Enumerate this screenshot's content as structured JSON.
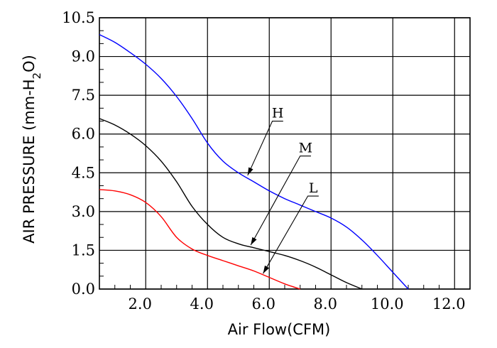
{
  "chart_data": {
    "type": "line",
    "xlabel": "Air Flow(CFM)",
    "ylabel": "AIR PRESSURE (mm-H2O)",
    "ylabel_parts": {
      "main": "AIR PRESSURE (mm-H",
      "sub": "2",
      "end": "O)"
    },
    "xlim": [
      0.5,
      12.5
    ],
    "ylim": [
      0,
      10.5
    ],
    "x_ticks": [
      2.0,
      4.0,
      6.0,
      8.0,
      10.0,
      12.0
    ],
    "x_tick_labels": [
      "2.0",
      "4.0",
      "6.0",
      "8.0",
      "10.0",
      "12.0"
    ],
    "y_ticks": [
      0,
      1.5,
      3.0,
      4.5,
      6.0,
      7.5,
      9.0,
      10.5
    ],
    "y_tick_labels": [
      "0.0",
      "1.5",
      "3.0",
      "4.5",
      "6.0",
      "7.5",
      "9.0",
      "10.5"
    ],
    "grid": true,
    "series": [
      {
        "name": "H",
        "color": "#0000ff",
        "x": [
          0.5,
          1.0,
          1.5,
          2.0,
          2.5,
          3.0,
          3.5,
          4.0,
          4.5,
          5.0,
          5.5,
          6.0,
          6.5,
          7.0,
          7.5,
          8.0,
          8.5,
          9.0,
          9.5,
          10.0,
          10.5
        ],
        "y": [
          9.85,
          9.55,
          9.15,
          8.7,
          8.15,
          7.45,
          6.6,
          5.65,
          4.95,
          4.5,
          4.15,
          3.8,
          3.5,
          3.25,
          3.0,
          2.75,
          2.4,
          1.9,
          1.3,
          0.65,
          0.0
        ]
      },
      {
        "name": "M",
        "color": "#000000",
        "x": [
          0.5,
          1.0,
          1.5,
          2.0,
          2.5,
          3.0,
          3.5,
          4.0,
          4.5,
          5.0,
          5.5,
          6.0,
          6.5,
          7.0,
          7.5,
          8.0,
          8.5,
          9.0
        ],
        "y": [
          6.6,
          6.35,
          6.0,
          5.55,
          4.95,
          4.15,
          3.2,
          2.5,
          2.0,
          1.75,
          1.6,
          1.45,
          1.3,
          1.1,
          0.85,
          0.55,
          0.25,
          0.0
        ]
      },
      {
        "name": "L",
        "color": "#ff0000",
        "x": [
          0.5,
          1.0,
          1.5,
          2.0,
          2.5,
          3.0,
          3.5,
          4.0,
          4.5,
          5.0,
          5.5,
          6.0,
          6.5,
          7.0
        ],
        "y": [
          3.85,
          3.8,
          3.65,
          3.35,
          2.8,
          2.0,
          1.55,
          1.3,
          1.1,
          0.9,
          0.7,
          0.45,
          0.2,
          0.0
        ]
      }
    ],
    "annotations": [
      {
        "text": "H",
        "target": [
          5.3,
          4.4
        ],
        "elbow": [
          6.1,
          6.5
        ],
        "label_end": [
          6.45,
          6.5
        ]
      },
      {
        "text": "M",
        "target": [
          5.4,
          1.7
        ],
        "elbow": [
          7.0,
          5.15
        ],
        "label_end": [
          7.35,
          5.15
        ]
      },
      {
        "text": "L",
        "target": [
          5.8,
          0.6
        ],
        "elbow": [
          7.25,
          3.6
        ],
        "label_end": [
          7.6,
          3.6
        ]
      }
    ]
  }
}
